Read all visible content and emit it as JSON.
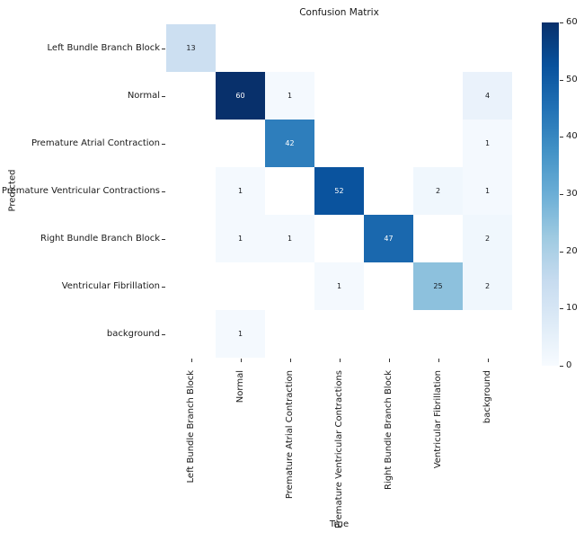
{
  "chart_data": {
    "type": "heatmap",
    "title": "Confusion Matrix",
    "xlabel": "True",
    "ylabel": "Predicted",
    "categories": [
      "Left Bundle Branch Block",
      "Normal",
      "Premature Atrial Contraction",
      "Premature Ventricular Contractions",
      "Right Bundle Branch Block",
      "Ventricular Fibrillation",
      "background"
    ],
    "matrix": [
      [
        13,
        null,
        null,
        null,
        null,
        null,
        null
      ],
      [
        null,
        60,
        1,
        null,
        null,
        null,
        4
      ],
      [
        null,
        null,
        42,
        null,
        null,
        null,
        1
      ],
      [
        null,
        1,
        null,
        52,
        null,
        2,
        1
      ],
      [
        null,
        1,
        1,
        null,
        47,
        null,
        2
      ],
      [
        null,
        null,
        null,
        1,
        null,
        25,
        2
      ],
      [
        null,
        1,
        null,
        null,
        null,
        null,
        null
      ]
    ],
    "vmin": 0,
    "vmax": 60,
    "colormap": "Blues",
    "colormap_stops": [
      "#f7fbff",
      "#deebf7",
      "#c6dbef",
      "#9ecae1",
      "#6baed6",
      "#4292c6",
      "#2171b5",
      "#08519c",
      "#08306b"
    ],
    "empty_cell_color": "#ffffff",
    "annotation_color_dark": "#15181d",
    "annotation_color_light": "#ffffff",
    "colorbar_ticks": [
      0,
      10,
      20,
      30,
      40,
      50,
      60
    ],
    "colorbar_position": "right",
    "grid": false
  }
}
